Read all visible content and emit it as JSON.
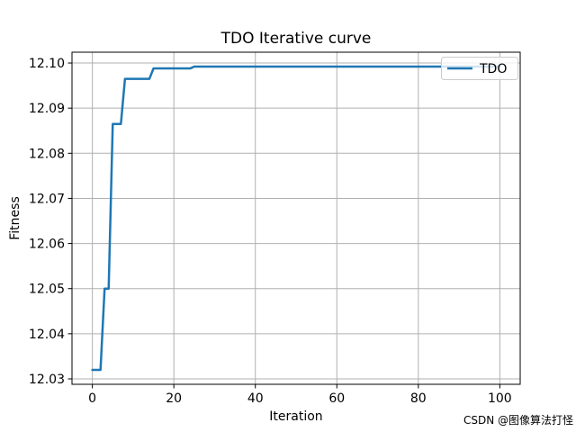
{
  "chart_data": {
    "type": "line",
    "title": "TDO Iterative curve",
    "xlabel": "Iteration",
    "ylabel": "Fitness",
    "xlim": [
      -5,
      105
    ],
    "ylim": [
      12.0288,
      12.1024
    ],
    "xticks": [
      0,
      20,
      40,
      60,
      80,
      100
    ],
    "xtick_labels": [
      "0",
      "20",
      "40",
      "60",
      "80",
      "100"
    ],
    "yticks": [
      12.03,
      12.04,
      12.05,
      12.06,
      12.07,
      12.08,
      12.09,
      12.1
    ],
    "ytick_labels": [
      "12.03",
      "12.04",
      "12.05",
      "12.06",
      "12.07",
      "12.08",
      "12.09",
      "12.10"
    ],
    "grid": true,
    "legend": {
      "position": "upper right",
      "entries": [
        {
          "label": "TDO",
          "color": "#1f77b4"
        }
      ]
    },
    "series": [
      {
        "name": "TDO",
        "color": "#1f77b4",
        "x": [
          0,
          2,
          3,
          4,
          5,
          7,
          8,
          14,
          15,
          24,
          25,
          100
        ],
        "y": [
          12.032,
          12.032,
          12.05,
          12.05,
          12.0865,
          12.0865,
          12.0965,
          12.0965,
          12.0988,
          12.0988,
          12.0992,
          12.0992
        ]
      }
    ]
  },
  "watermark": {
    "text": "CSDN @图像算法打怪",
    "color": "#d6d6d6"
  },
  "colors": {
    "line": "#1f77b4",
    "grid": "#b0b0b0",
    "spine": "#000000",
    "legend_border": "#cccccc",
    "legend_bg": "rgba(255,255,255,0.8)",
    "background": "#ffffff"
  }
}
